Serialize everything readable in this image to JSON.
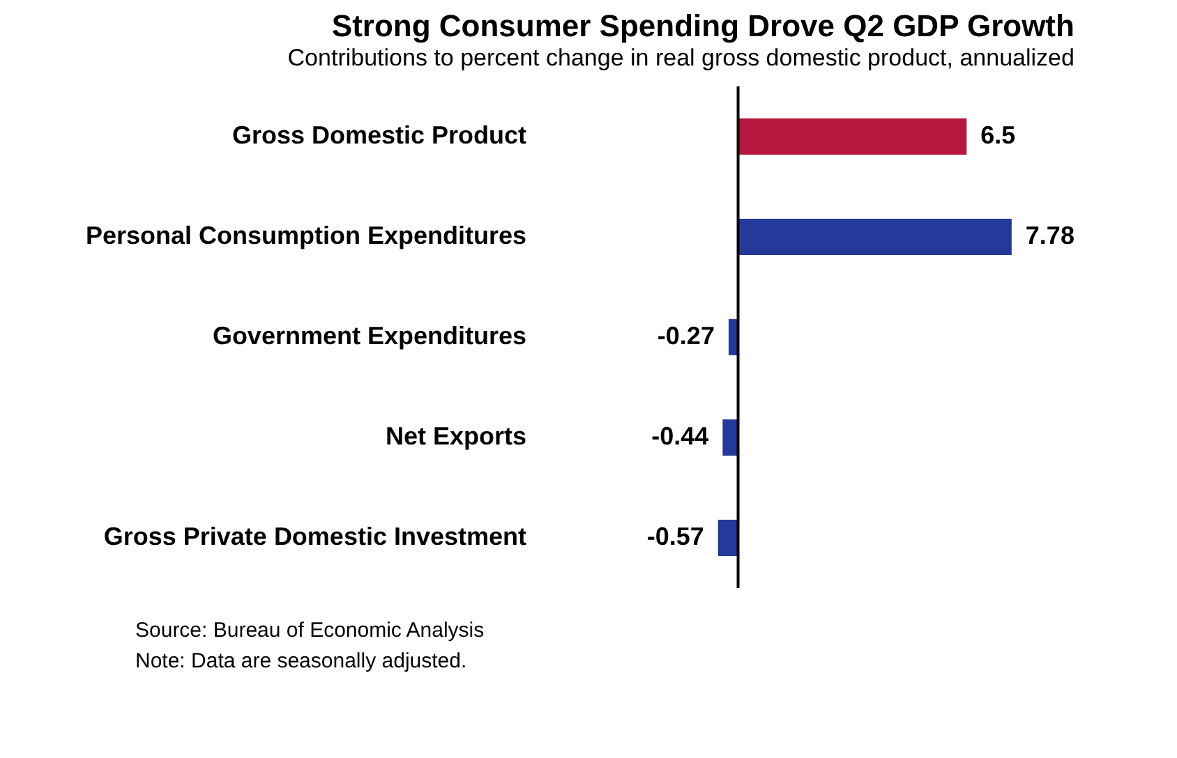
{
  "chart_data": {
    "type": "bar",
    "orientation": "horizontal",
    "title": "Strong Consumer Spending Drove Q2 GDP Growth",
    "subtitle": "Contributions to percent change in real gross domestic product, annualized",
    "categories": [
      "Gross Domestic Product",
      "Personal Consumption Expenditures",
      "Government Expenditures",
      "Net Exports",
      "Gross Private Domestic Investment"
    ],
    "values": [
      6.5,
      7.78,
      -0.27,
      -0.44,
      -0.57
    ],
    "colors": [
      "#b5173f",
      "#233a9a",
      "#233a9a",
      "#233a9a",
      "#233a9a"
    ],
    "data_labels": true,
    "grid": false,
    "annotations": [
      "Source: Bureau of Economic Analysis",
      "Note: Data are seasonally adjusted."
    ]
  }
}
